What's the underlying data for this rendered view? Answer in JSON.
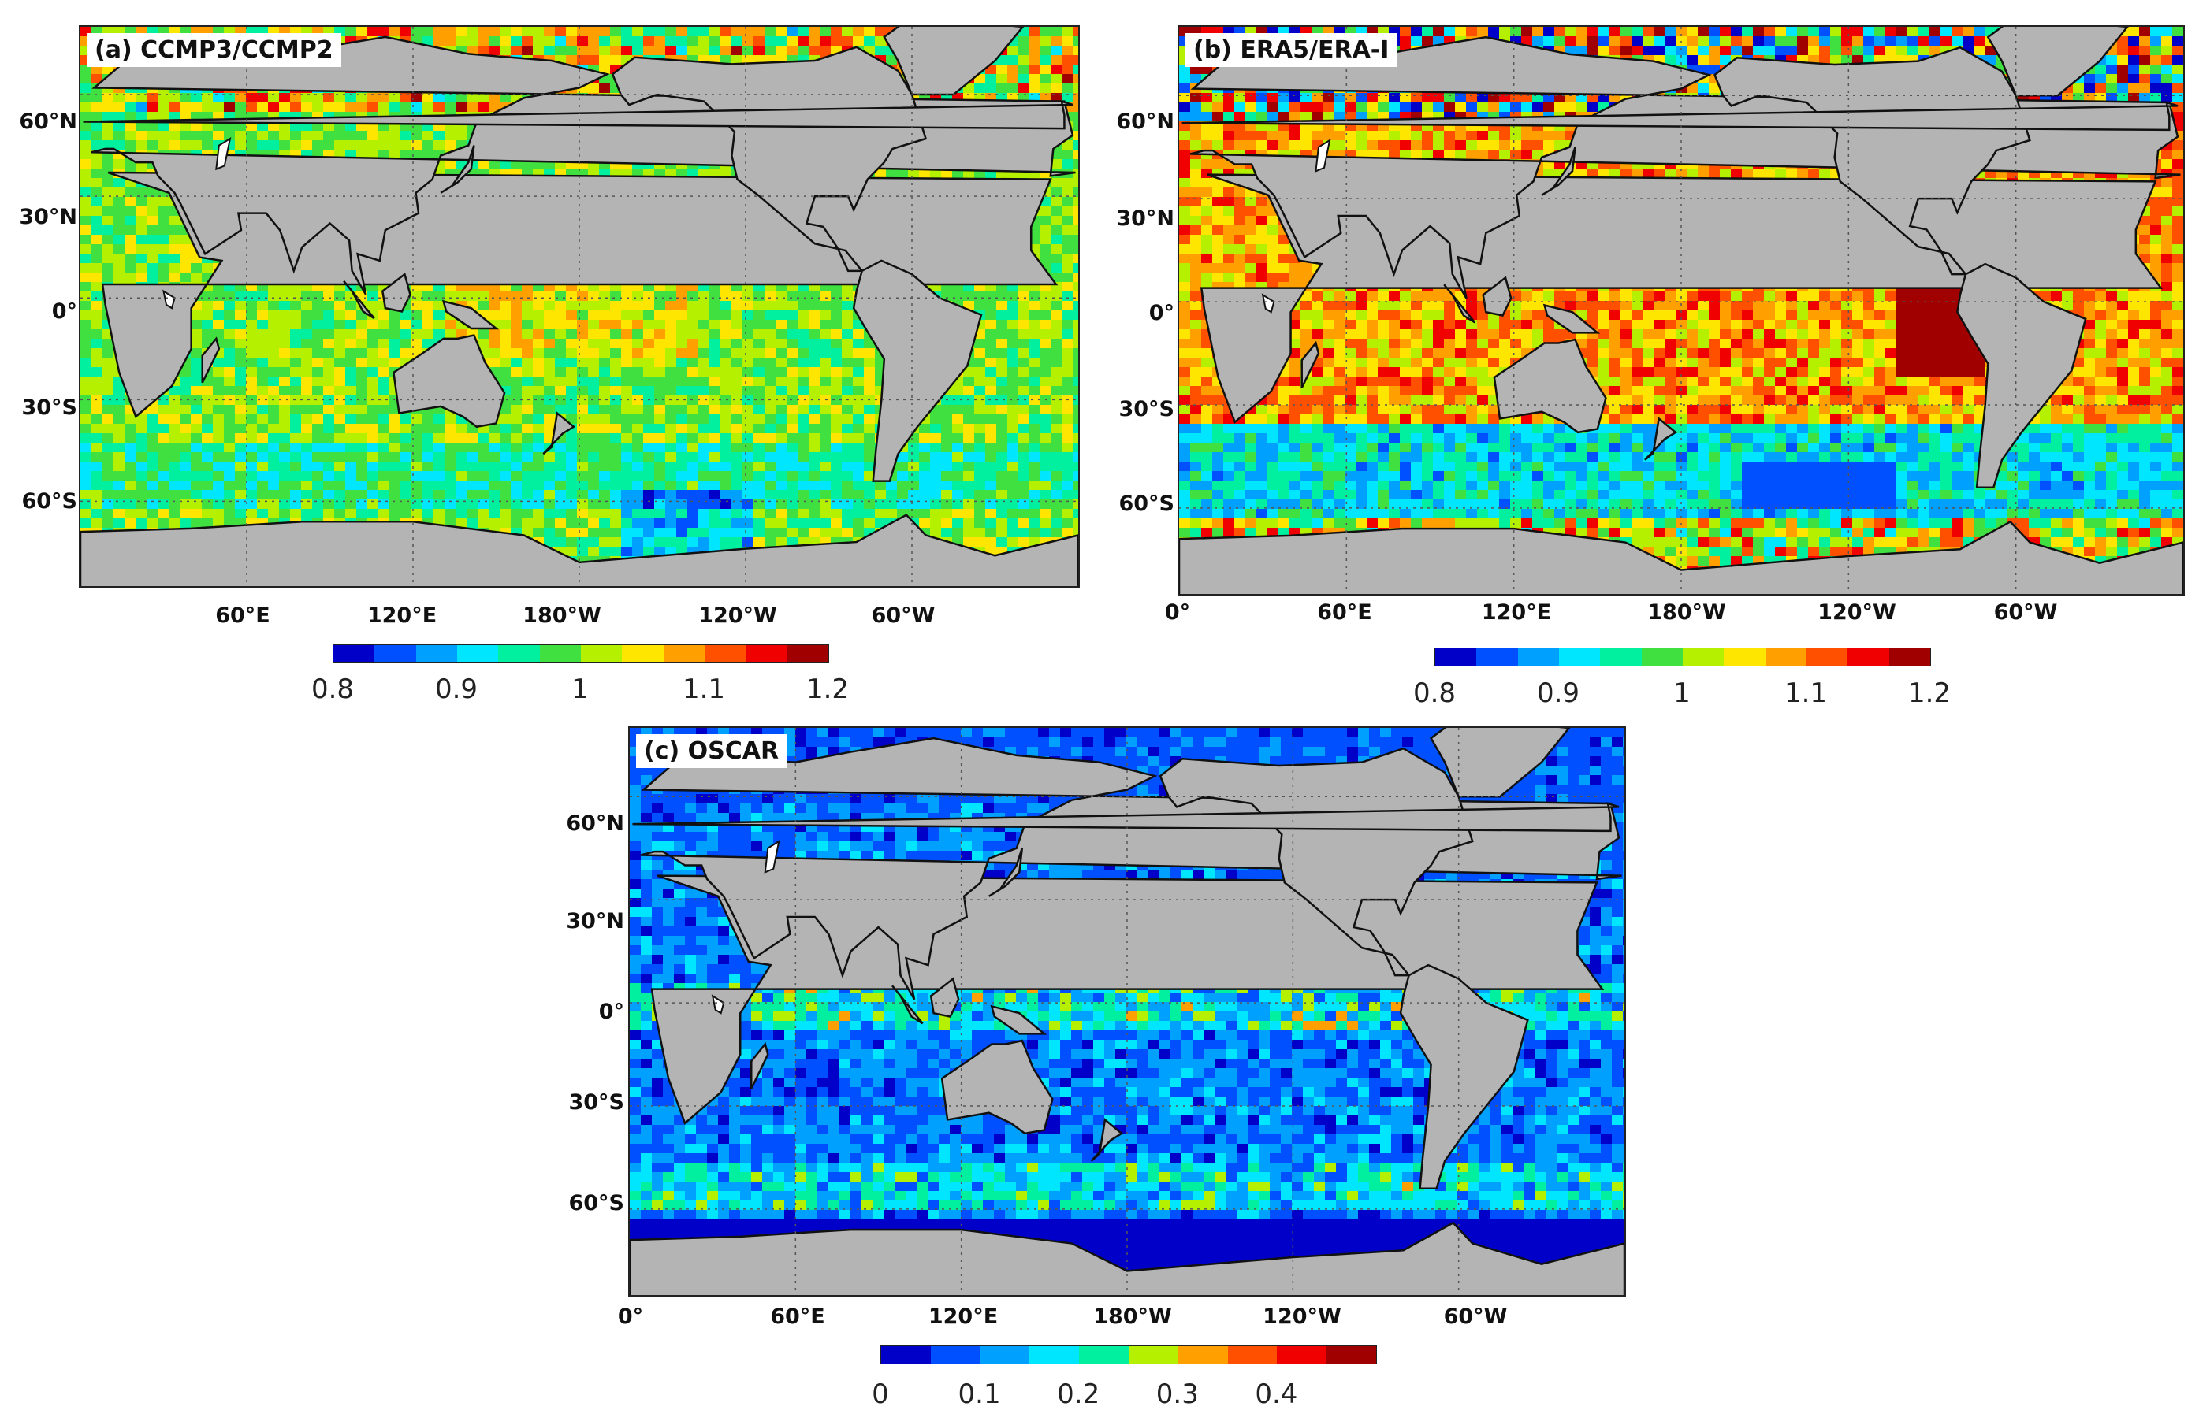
{
  "panels": [
    {
      "id": "a",
      "title": "(a) CCMP3/CCMP2",
      "lat_labels": [
        "60°N",
        "30°N",
        "0°",
        "30°S",
        "60°S"
      ],
      "lon_labels": [
        "60°E",
        "120°E",
        "180°W",
        "120°W",
        "60°W"
      ],
      "colorbar": {
        "ticks": [
          "0.8",
          "0.9",
          "1",
          "1.1",
          "1.2"
        ],
        "range": [
          0.8,
          1.2
        ],
        "colors": [
          "#0000c8",
          "#0050ff",
          "#00a0ff",
          "#00e6ff",
          "#00f0a0",
          "#40e040",
          "#b4f000",
          "#ffe600",
          "#ffa000",
          "#ff5000",
          "#f00000",
          "#a00000"
        ]
      },
      "field_style": "ccmp"
    },
    {
      "id": "b",
      "title": "(b) ERA5/ERA-I",
      "lat_labels": [
        "60°N",
        "30°N",
        "0°",
        "30°S",
        "60°S"
      ],
      "lon_labels": [
        "0°",
        "60°E",
        "120°E",
        "180°W",
        "120°W",
        "60°W"
      ],
      "colorbar": {
        "ticks": [
          "0.8",
          "0.9",
          "1",
          "1.1",
          "1.2"
        ],
        "range": [
          0.8,
          1.2
        ],
        "colors": [
          "#0000c8",
          "#0050ff",
          "#00a0ff",
          "#00e6ff",
          "#00f0a0",
          "#40e040",
          "#b4f000",
          "#ffe600",
          "#ffa000",
          "#ff5000",
          "#f00000",
          "#a00000"
        ]
      },
      "field_style": "era"
    },
    {
      "id": "c",
      "title": "(c) OSCAR",
      "lat_labels": [
        "60°N",
        "30°N",
        "0°",
        "30°S",
        "60°S"
      ],
      "lon_labels": [
        "0°",
        "60°E",
        "120°E",
        "180°W",
        "120°W",
        "60°W"
      ],
      "colorbar": {
        "ticks": [
          "0",
          "0.1",
          "0.2",
          "0.3",
          "0.4"
        ],
        "range": [
          0,
          0.5
        ],
        "colors": [
          "#0000c8",
          "#0050ff",
          "#00a0ff",
          "#00e6ff",
          "#00f0a0",
          "#b4f000",
          "#ffa000",
          "#ff5000",
          "#f00000",
          "#a00000"
        ]
      },
      "field_style": "oscar"
    }
  ],
  "colors": {
    "land": "#b4b4b4",
    "coast": "#111111",
    "grid": "#555555",
    "lakes": "#ffffff"
  }
}
